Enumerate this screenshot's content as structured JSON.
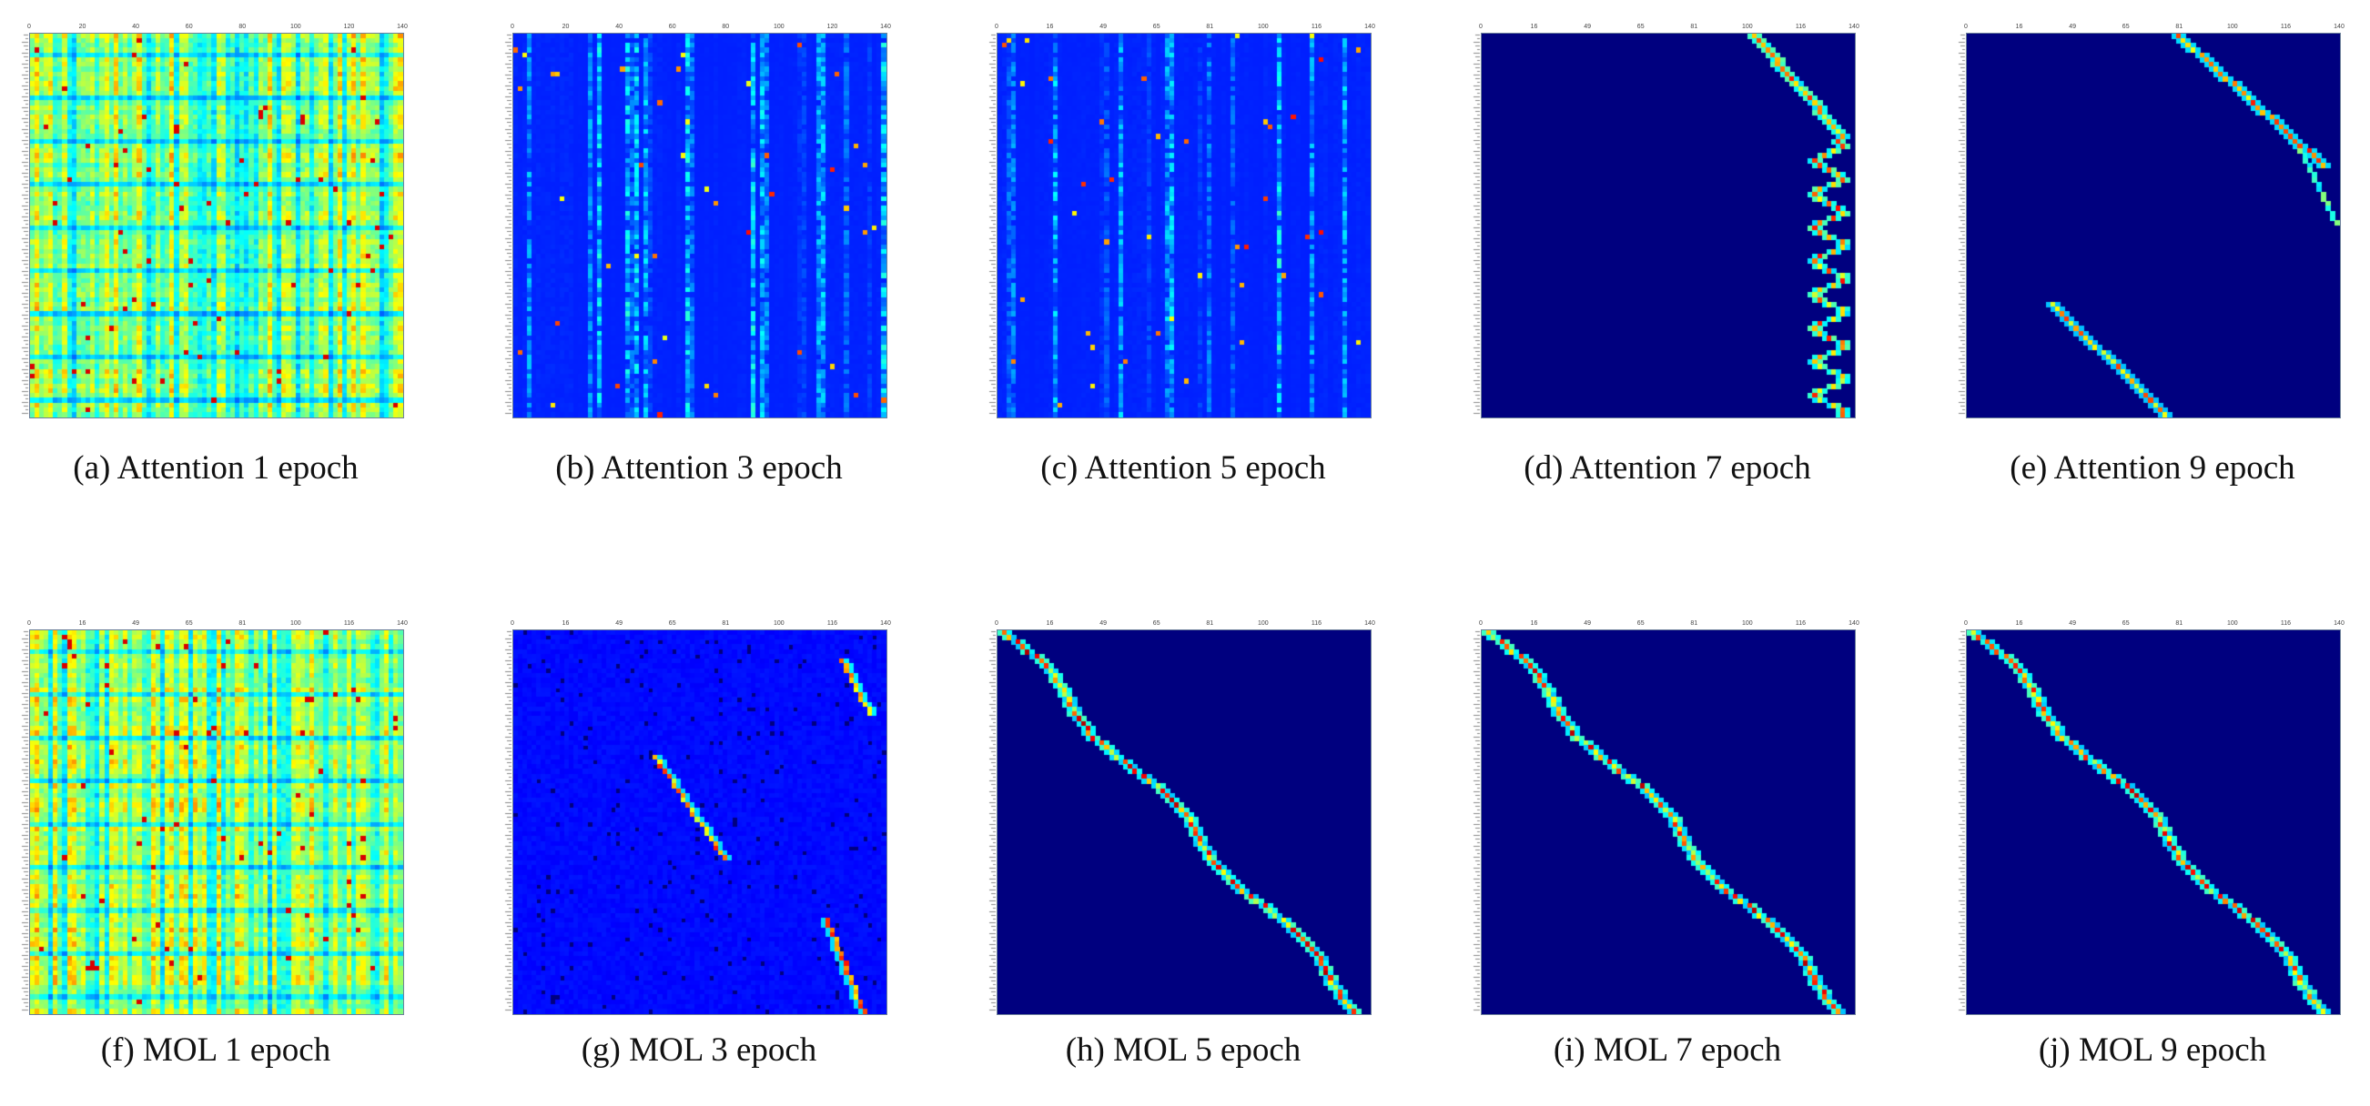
{
  "figure": {
    "rows": 2,
    "cols": 5,
    "colormap": "jet",
    "background_color": "#00007f",
    "captions": [
      "(a) Attention 1 epoch",
      "(b) Attention 3 epoch",
      "(c) Attention 5 epoch",
      "(d) Attention 7 epoch",
      "(e) Attention 9 epoch",
      "(f) MOL 1 epoch",
      "(g) MOL 3 epoch",
      "(h) MOL 5 epoch",
      "(i) MOL 7 epoch",
      "(j) MOL 9 epoch"
    ]
  },
  "chart_data": [
    {
      "type": "heatmap",
      "caption": "(a) Attention 1 epoch",
      "pattern": "vertical-stripes",
      "method": "Attention",
      "epoch": 1
    },
    {
      "type": "heatmap",
      "caption": "(b) Attention 3 epoch",
      "pattern": "sparse-vertical",
      "method": "Attention",
      "epoch": 3
    },
    {
      "type": "heatmap",
      "caption": "(c) Attention 5 epoch",
      "pattern": "sparse-vertical",
      "method": "Attention",
      "epoch": 5
    },
    {
      "type": "heatmap",
      "caption": "(d) Attention 7 epoch",
      "pattern": "right-edge-zigzag",
      "method": "Attention",
      "epoch": 7
    },
    {
      "type": "heatmap",
      "caption": "(e) Attention 9 epoch",
      "pattern": "broken-diagonal",
      "method": "Attention",
      "epoch": 9
    },
    {
      "type": "heatmap",
      "caption": "(f) MOL 1 epoch",
      "pattern": "vertical-stripes",
      "method": "MOL",
      "epoch": 1
    },
    {
      "type": "heatmap",
      "caption": "(g) MOL 3 epoch",
      "pattern": "partial-diagonal",
      "method": "MOL",
      "epoch": 3
    },
    {
      "type": "heatmap",
      "caption": "(h) MOL 5 epoch",
      "pattern": "diagonal",
      "method": "MOL",
      "epoch": 5
    },
    {
      "type": "heatmap",
      "caption": "(i) MOL 7 epoch",
      "pattern": "diagonal",
      "method": "MOL",
      "epoch": 7
    },
    {
      "type": "heatmap",
      "caption": "(j) MOL 9 epoch",
      "pattern": "diagonal",
      "method": "MOL",
      "epoch": 9
    }
  ]
}
